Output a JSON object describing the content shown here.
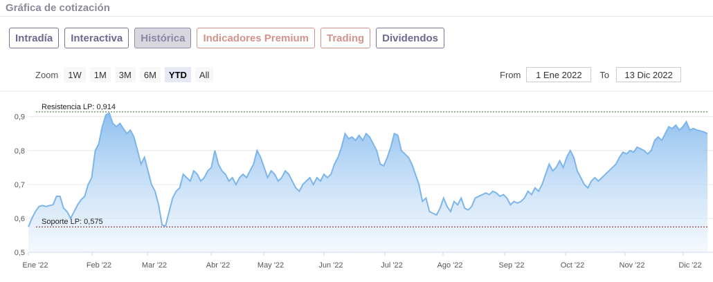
{
  "section": {
    "title": "Gráfica de cotización"
  },
  "tabs": [
    {
      "label": "Intradía"
    },
    {
      "label": "Interactiva"
    },
    {
      "label": "Histórica"
    },
    {
      "label": "Indicadores Premium"
    },
    {
      "label": "Trading"
    },
    {
      "label": "Dividendos"
    }
  ],
  "zoom": {
    "label": "Zoom",
    "options": [
      {
        "label": "1W"
      },
      {
        "label": "1M"
      },
      {
        "label": "3M"
      },
      {
        "label": "6M"
      },
      {
        "label": "YTD"
      },
      {
        "label": "All"
      }
    ]
  },
  "range": {
    "from_label": "From",
    "from_value": "1 Ene 2022",
    "to_label": "To",
    "to_value": "13 Dic 2022"
  },
  "chart_data": {
    "type": "area",
    "ylim": [
      0.5,
      0.93
    ],
    "yticks": [
      {
        "value": 0.5,
        "label": "0,5"
      },
      {
        "value": 0.6,
        "label": "0,6"
      },
      {
        "value": 0.7,
        "label": "0,7"
      },
      {
        "value": 0.8,
        "label": "0,8"
      },
      {
        "value": 0.9,
        "label": "0,9"
      }
    ],
    "xticks": [
      "Ene '22",
      "Feb '22",
      "Mar '22",
      "Abr '22",
      "May '22",
      "Jun '22",
      "Jul '22",
      "Ago '22",
      "Sep '22",
      "Oct '22",
      "Nov '22",
      "Dic '22"
    ],
    "resistance": {
      "label": "Resistencia LP: 0,914",
      "value": 0.914
    },
    "support": {
      "label": "Soporte LP: 0,575",
      "value": 0.575
    },
    "colors": {
      "line": "#7cb5ec",
      "fill_top": "#7cb5ec",
      "fill_bottom": "#eef5fd",
      "resistance": "#2e6b2e",
      "support": "#7a1a1a"
    },
    "values": [
      0.575,
      0.6,
      0.62,
      0.635,
      0.638,
      0.635,
      0.638,
      0.64,
      0.665,
      0.665,
      0.63,
      0.62,
      0.6,
      0.62,
      0.64,
      0.655,
      0.665,
      0.7,
      0.72,
      0.8,
      0.82,
      0.87,
      0.905,
      0.91,
      0.88,
      0.87,
      0.88,
      0.865,
      0.85,
      0.86,
      0.84,
      0.8,
      0.76,
      0.78,
      0.74,
      0.7,
      0.68,
      0.64,
      0.58,
      0.578,
      0.62,
      0.66,
      0.68,
      0.69,
      0.73,
      0.72,
      0.71,
      0.74,
      0.73,
      0.71,
      0.72,
      0.74,
      0.75,
      0.8,
      0.76,
      0.74,
      0.73,
      0.71,
      0.72,
      0.7,
      0.72,
      0.73,
      0.72,
      0.74,
      0.76,
      0.8,
      0.78,
      0.75,
      0.72,
      0.74,
      0.73,
      0.71,
      0.72,
      0.74,
      0.73,
      0.71,
      0.69,
      0.68,
      0.7,
      0.71,
      0.72,
      0.7,
      0.72,
      0.71,
      0.73,
      0.72,
      0.73,
      0.76,
      0.78,
      0.81,
      0.85,
      0.835,
      0.84,
      0.83,
      0.845,
      0.83,
      0.85,
      0.84,
      0.82,
      0.8,
      0.76,
      0.755,
      0.78,
      0.81,
      0.85,
      0.845,
      0.8,
      0.79,
      0.78,
      0.76,
      0.73,
      0.7,
      0.65,
      0.66,
      0.62,
      0.615,
      0.61,
      0.63,
      0.66,
      0.635,
      0.62,
      0.65,
      0.64,
      0.66,
      0.63,
      0.625,
      0.635,
      0.66,
      0.665,
      0.67,
      0.675,
      0.67,
      0.68,
      0.675,
      0.665,
      0.67,
      0.66,
      0.64,
      0.65,
      0.645,
      0.65,
      0.66,
      0.68,
      0.67,
      0.69,
      0.68,
      0.7,
      0.73,
      0.76,
      0.74,
      0.75,
      0.77,
      0.75,
      0.78,
      0.8,
      0.78,
      0.74,
      0.72,
      0.7,
      0.69,
      0.71,
      0.72,
      0.71,
      0.72,
      0.73,
      0.74,
      0.75,
      0.76,
      0.78,
      0.795,
      0.79,
      0.8,
      0.795,
      0.81,
      0.805,
      0.8,
      0.79,
      0.8,
      0.83,
      0.84,
      0.83,
      0.85,
      0.87,
      0.865,
      0.875,
      0.86,
      0.87,
      0.885,
      0.86,
      0.865,
      0.86,
      0.858,
      0.855,
      0.85
    ]
  }
}
